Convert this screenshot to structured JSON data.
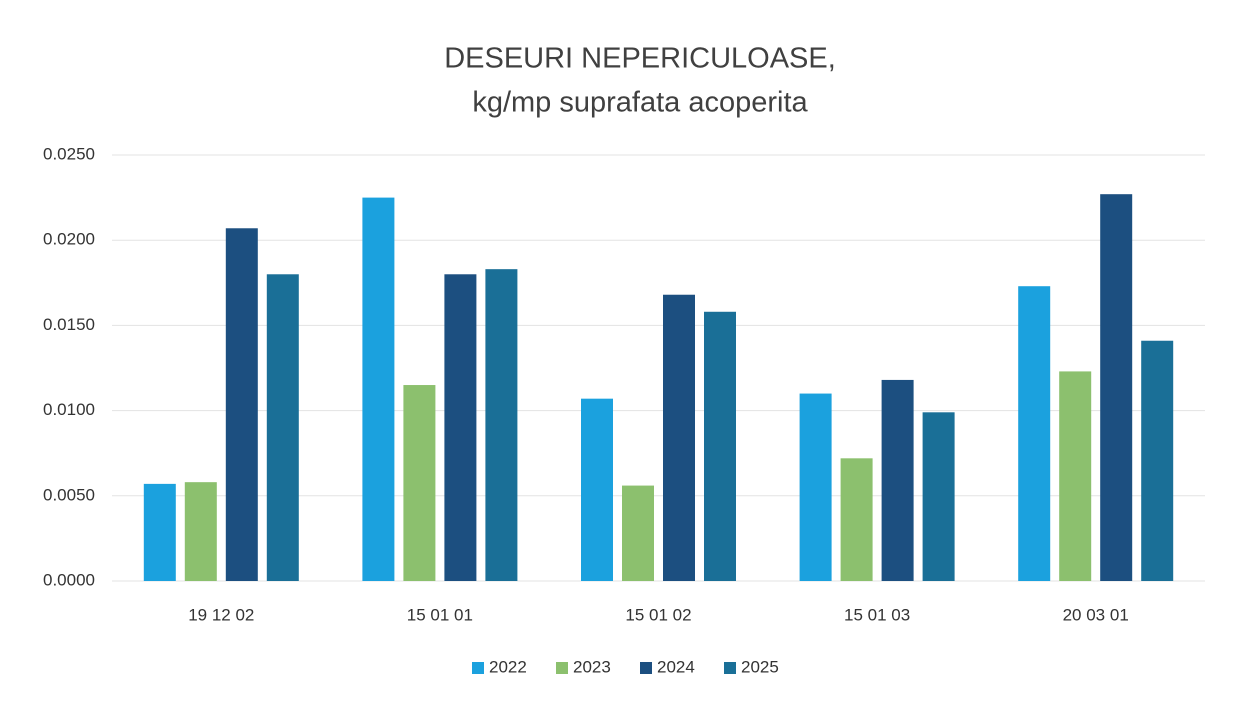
{
  "chart_data": {
    "type": "bar",
    "title": [
      "DESEURI NEPERICULOASE,",
      "kg/mp suprafata acoperita"
    ],
    "categories": [
      "19 12 02",
      "15 01 01",
      "15 01 02",
      "15 01 03",
      "20 03 01"
    ],
    "series": [
      {
        "name": "2022",
        "color": "#1ba1de",
        "values": [
          0.0057,
          0.0225,
          0.0107,
          0.011,
          0.0173
        ]
      },
      {
        "name": "2023",
        "color": "#8cc06e",
        "values": [
          0.0058,
          0.0115,
          0.0056,
          0.0072,
          0.0123
        ]
      },
      {
        "name": "2024",
        "color": "#1c4f80",
        "values": [
          0.0207,
          0.018,
          0.0168,
          0.0118,
          0.0227
        ]
      },
      {
        "name": "2025",
        "color": "#1a6f97",
        "values": [
          0.018,
          0.0183,
          0.0158,
          0.0099,
          0.0141
        ]
      }
    ],
    "ylim": [
      0,
      0.025
    ],
    "yticks": [
      {
        "value": 0,
        "label": "0.0000"
      },
      {
        "value": 0.005,
        "label": "0.0050"
      },
      {
        "value": 0.01,
        "label": "0.0100"
      },
      {
        "value": 0.015,
        "label": "0.0150"
      },
      {
        "value": 0.02,
        "label": "0.0200"
      },
      {
        "value": 0.025,
        "label": "0.0250"
      }
    ],
    "grid": true,
    "legend": "bottom"
  }
}
